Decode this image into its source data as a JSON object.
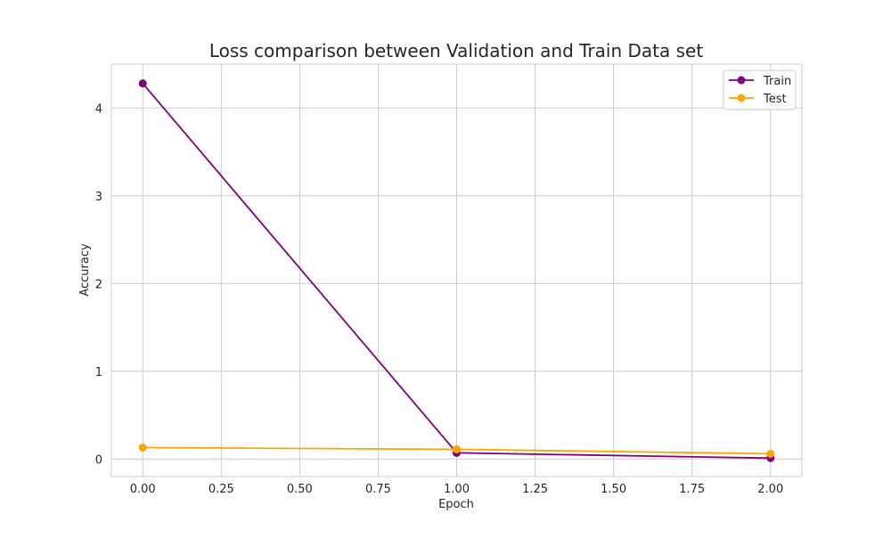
{
  "chart_data": {
    "type": "line",
    "title": "Loss comparison between Validation and Train Data set",
    "xlabel": "Epoch",
    "ylabel": "Accuracy",
    "x": [
      0.0,
      1.0,
      2.0
    ],
    "xlim": [
      -0.1,
      2.1
    ],
    "ylim": [
      -0.2,
      4.5
    ],
    "xticks": [
      0.0,
      0.25,
      0.5,
      0.75,
      1.0,
      1.25,
      1.5,
      1.75,
      2.0
    ],
    "xtick_labels": [
      "0.00",
      "0.25",
      "0.50",
      "0.75",
      "1.00",
      "1.25",
      "1.50",
      "1.75",
      "2.00"
    ],
    "yticks": [
      0,
      1,
      2,
      3,
      4
    ],
    "ytick_labels": [
      "0",
      "1",
      "2",
      "3",
      "4"
    ],
    "grid": true,
    "legend_position": "top-right",
    "series": [
      {
        "name": "Train",
        "color": "#800080",
        "values": [
          4.28,
          0.07,
          0.01
        ]
      },
      {
        "name": "Test",
        "color": "#FFA500",
        "values": [
          0.13,
          0.11,
          0.06
        ]
      }
    ]
  }
}
